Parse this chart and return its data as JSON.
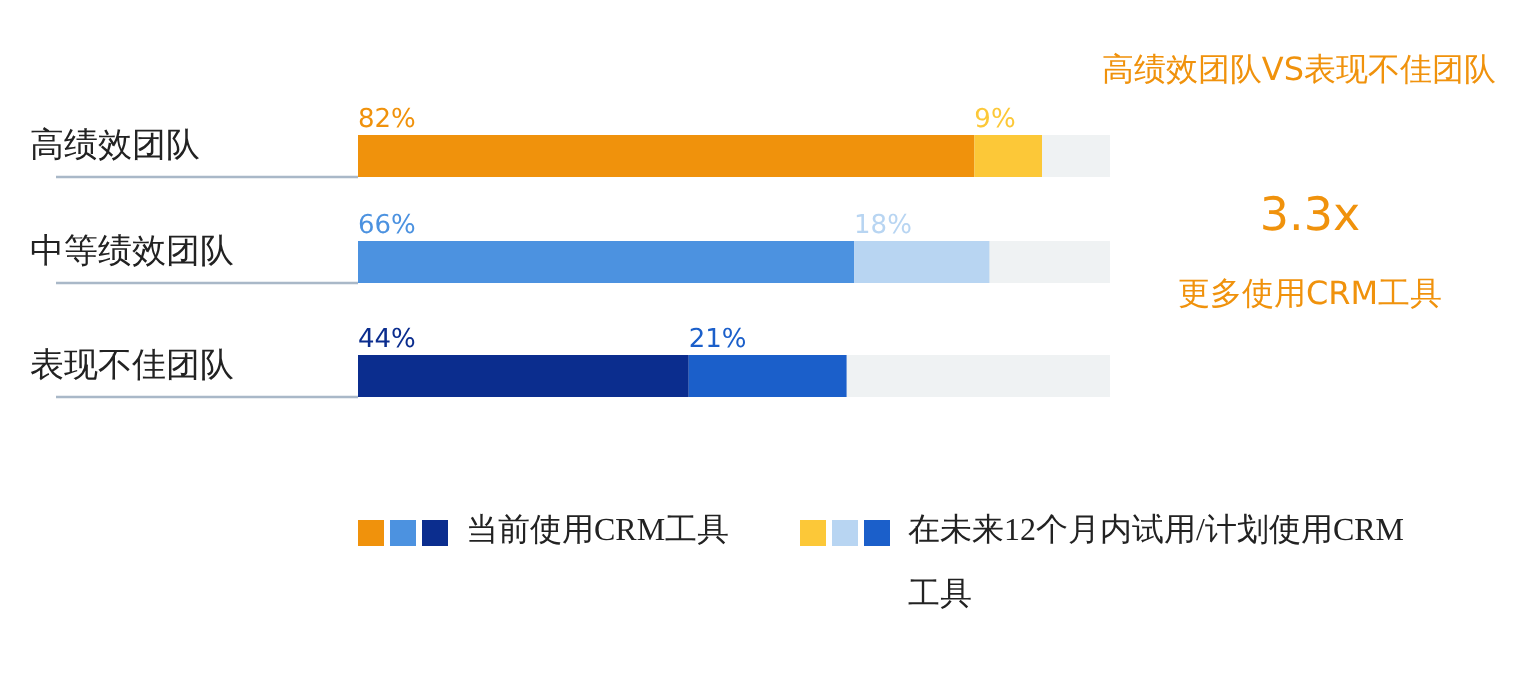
{
  "chart_data": {
    "type": "bar",
    "orientation": "horizontal",
    "stacked": true,
    "title": "高绩效团队VS表现不佳团队",
    "categories": [
      "高绩效团队",
      "中等绩效团队",
      "表现不佳团队"
    ],
    "legend": "bottom",
    "tick_labels": "y",
    "series": [
      {
        "name": "当前使用CRM工具",
        "colors": [
          "#f0920c",
          "#4c92e0",
          "#0b2d8e"
        ],
        "values": [
          82,
          66,
          44
        ],
        "value_labels": [
          "82%",
          "66%",
          "44%"
        ]
      },
      {
        "name": "在未来12个月内试用/计划使用CRM工具",
        "colors": [
          "#fcc838",
          "#b8d5f2",
          "#1b5fca"
        ],
        "values": [
          9,
          18,
          21
        ],
        "value_labels": [
          "9%",
          "18%",
          "21%"
        ]
      }
    ],
    "annotations": [
      "3.3x",
      "更多使用CRM工具"
    ]
  }
}
